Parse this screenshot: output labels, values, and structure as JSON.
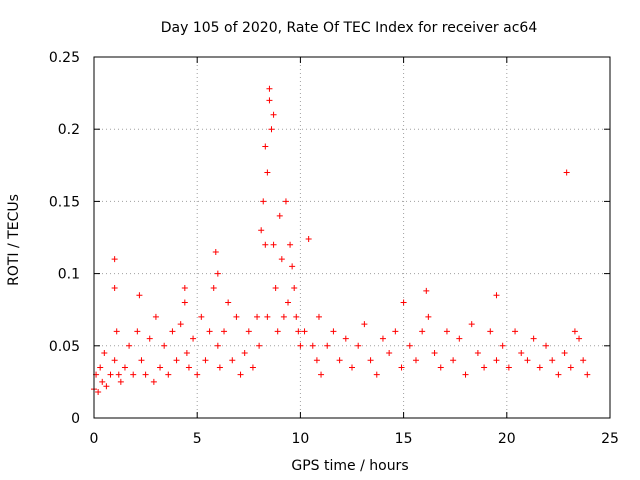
{
  "chart_data": {
    "type": "scatter",
    "title": "Day 105 of 2020, Rate Of TEC Index for receiver ac64",
    "xlabel": "GPS time / hours",
    "ylabel": "ROTI / TECUs",
    "xlim": [
      0,
      25
    ],
    "ylim": [
      0,
      0.25
    ],
    "grid": true,
    "marker": "+",
    "color": "#ff0000",
    "x_ticks": [
      0,
      5,
      10,
      15,
      20,
      25
    ],
    "x_tick_labels": [
      "0",
      "5",
      "10",
      "15",
      "20",
      "25"
    ],
    "y_ticks": [
      0,
      0.05,
      0.1,
      0.15,
      0.2,
      0.25
    ],
    "y_tick_labels": [
      "0",
      "0.05",
      "0.1",
      "0.15",
      "0.2",
      "0.25"
    ],
    "series": [
      {
        "name": "ROTI",
        "x": [
          0.0,
          0.1,
          0.2,
          0.3,
          0.4,
          0.5,
          0.6,
          0.8,
          1.0,
          1.0,
          1.0,
          1.1,
          1.2,
          1.3,
          1.5,
          1.7,
          1.9,
          2.1,
          2.2,
          2.3,
          2.5,
          2.7,
          2.9,
          3.0,
          3.2,
          3.4,
          3.6,
          3.8,
          4.0,
          4.2,
          4.4,
          4.4,
          4.5,
          4.6,
          4.8,
          5.0,
          5.2,
          5.4,
          5.6,
          5.8,
          5.9,
          6.0,
          6.0,
          6.1,
          6.3,
          6.5,
          6.7,
          6.9,
          7.1,
          7.3,
          7.5,
          7.7,
          7.9,
          8.0,
          8.1,
          8.2,
          8.3,
          8.3,
          8.4,
          8.4,
          8.5,
          8.5,
          8.6,
          8.7,
          8.7,
          8.8,
          8.9,
          9.0,
          9.1,
          9.2,
          9.3,
          9.4,
          9.5,
          9.6,
          9.7,
          9.8,
          9.9,
          10.0,
          10.2,
          10.4,
          10.6,
          10.8,
          10.9,
          11.0,
          11.3,
          11.6,
          11.9,
          12.2,
          12.5,
          12.8,
          13.1,
          13.4,
          13.7,
          14.0,
          14.3,
          14.6,
          14.9,
          15.0,
          15.3,
          15.6,
          15.9,
          16.1,
          16.2,
          16.5,
          16.8,
          17.1,
          17.4,
          17.7,
          18.0,
          18.3,
          18.6,
          18.9,
          19.2,
          19.5,
          19.5,
          19.8,
          20.1,
          20.4,
          20.7,
          21.0,
          21.3,
          21.6,
          21.9,
          22.2,
          22.5,
          22.8,
          22.9,
          23.1,
          23.3,
          23.5,
          23.7,
          23.9
        ],
        "y": [
          0.02,
          0.03,
          0.018,
          0.035,
          0.025,
          0.045,
          0.022,
          0.03,
          0.11,
          0.09,
          0.04,
          0.06,
          0.03,
          0.025,
          0.035,
          0.05,
          0.03,
          0.06,
          0.085,
          0.04,
          0.03,
          0.055,
          0.025,
          0.07,
          0.035,
          0.05,
          0.03,
          0.06,
          0.04,
          0.065,
          0.09,
          0.08,
          0.045,
          0.035,
          0.055,
          0.03,
          0.07,
          0.04,
          0.06,
          0.09,
          0.115,
          0.1,
          0.05,
          0.035,
          0.06,
          0.08,
          0.04,
          0.07,
          0.03,
          0.045,
          0.06,
          0.035,
          0.07,
          0.05,
          0.13,
          0.15,
          0.188,
          0.12,
          0.17,
          0.07,
          0.22,
          0.228,
          0.2,
          0.21,
          0.12,
          0.09,
          0.06,
          0.14,
          0.11,
          0.07,
          0.15,
          0.08,
          0.12,
          0.105,
          0.09,
          0.07,
          0.06,
          0.05,
          0.06,
          0.124,
          0.05,
          0.04,
          0.07,
          0.03,
          0.05,
          0.06,
          0.04,
          0.055,
          0.035,
          0.05,
          0.065,
          0.04,
          0.03,
          0.055,
          0.045,
          0.06,
          0.035,
          0.08,
          0.05,
          0.04,
          0.06,
          0.088,
          0.07,
          0.045,
          0.035,
          0.06,
          0.04,
          0.055,
          0.03,
          0.065,
          0.045,
          0.035,
          0.06,
          0.085,
          0.04,
          0.05,
          0.035,
          0.06,
          0.045,
          0.04,
          0.055,
          0.035,
          0.05,
          0.04,
          0.03,
          0.045,
          0.17,
          0.035,
          0.06,
          0.055,
          0.04,
          0.03
        ]
      }
    ]
  }
}
